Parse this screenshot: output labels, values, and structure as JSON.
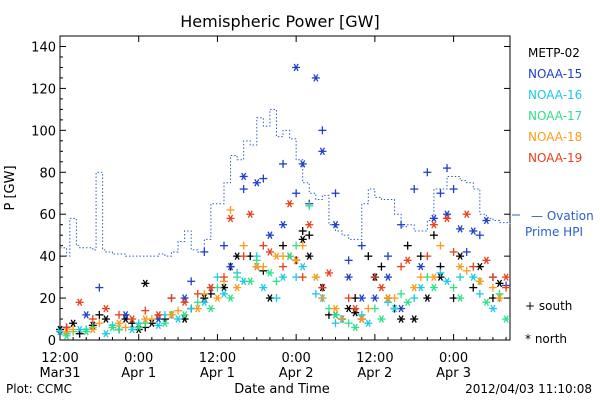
{
  "chart_data": {
    "type": "scatter",
    "title": "Hemispheric Power [GW]",
    "ylabel": "P [GW]",
    "xlabel": "Date and Time",
    "ylim": [
      0,
      145
    ],
    "y_ticks": [
      0,
      20,
      40,
      60,
      80,
      100,
      120,
      140
    ],
    "xlim_hours": [
      0,
      68.6
    ],
    "x_ticks": [
      {
        "hours": 0,
        "line1": "12:00",
        "line2": "Mar31"
      },
      {
        "hours": 12,
        "line1": "0:00",
        "line2": "Apr 1"
      },
      {
        "hours": 24,
        "line1": "12:00",
        "line2": "Apr 1"
      },
      {
        "hours": 36,
        "line1": "0:00",
        "line2": "Apr 2"
      },
      {
        "hours": 48,
        "line1": "12:00",
        "line2": "Apr 2"
      },
      {
        "hours": 60,
        "line1": "0:00",
        "line2": "Apr 3"
      }
    ],
    "legend": {
      "placement": "right",
      "satellites": [
        {
          "name": "METP-02",
          "color": "#000000"
        },
        {
          "name": "NOAA-15",
          "color": "#1f3fcc"
        },
        {
          "name": "NOAA-16",
          "color": "#1ec8e6"
        },
        {
          "name": "NOAA-17",
          "color": "#2ee08a"
        },
        {
          "name": "NOAA-18",
          "color": "#ff9a1a"
        },
        {
          "name": "NOAA-19",
          "color": "#e8401a"
        }
      ],
      "ovation_label_line1": "— Ovation",
      "ovation_label_line2": "Prime HPI",
      "ovation_color": "#2c5fcc",
      "south_label": "+ south",
      "north_label": "* north"
    },
    "ovation_series": {
      "name": "Ovation Prime HPI",
      "hours": [
        0,
        1,
        1.5,
        2.5,
        3,
        4,
        5,
        5.5,
        6.5,
        7,
        8,
        9,
        10,
        11,
        12,
        13,
        14,
        15,
        16,
        17,
        18,
        19,
        20,
        21,
        22,
        23,
        24,
        25,
        26,
        27,
        28,
        29,
        30,
        31,
        32,
        33,
        34,
        35,
        36,
        37,
        38,
        39,
        40,
        41,
        42,
        43,
        44,
        45,
        46,
        47,
        48,
        49,
        50,
        51,
        52,
        53,
        54,
        55,
        56,
        57,
        58,
        59,
        60,
        61,
        62,
        63,
        64,
        65,
        66,
        67,
        68.6
      ],
      "values": [
        44,
        40,
        58,
        45,
        44,
        44,
        43,
        80,
        43,
        42,
        41,
        41,
        40,
        40,
        40,
        40,
        40,
        41,
        40,
        42,
        47,
        52,
        43,
        42,
        48,
        65,
        65,
        75,
        88,
        86,
        95,
        93,
        106,
        102,
        110,
        97,
        100,
        96,
        86,
        75,
        70,
        67,
        69,
        55,
        52,
        50,
        48,
        48,
        65,
        72,
        68,
        67,
        67,
        60,
        54,
        55,
        52,
        52,
        57,
        72,
        72,
        78,
        78,
        76,
        75,
        72,
        60,
        58,
        57,
        56,
        54
      ]
    },
    "annotations": {
      "plot_credit": "Plot: CCMC",
      "timestamp": "2012/04/03 11:10:08"
    },
    "series": [
      {
        "name": "METP-02",
        "color": "#000000",
        "south": [
          [
            1,
            6
          ],
          [
            3,
            3
          ],
          [
            6,
            12
          ],
          [
            9,
            5
          ],
          [
            11,
            8
          ],
          [
            13,
            6
          ],
          [
            16,
            10
          ],
          [
            20,
            15
          ],
          [
            23,
            22
          ],
          [
            26,
            35
          ],
          [
            29,
            40
          ],
          [
            31,
            33
          ],
          [
            34,
            45
          ],
          [
            36,
            38
          ],
          [
            37,
            52
          ],
          [
            38,
            50
          ],
          [
            41,
            12
          ],
          [
            43,
            10
          ],
          [
            45,
            20
          ],
          [
            47,
            40
          ],
          [
            49,
            35
          ],
          [
            51,
            15
          ],
          [
            53,
            45
          ],
          [
            55,
            40
          ],
          [
            57,
            50
          ],
          [
            58,
            35
          ],
          [
            60,
            20
          ],
          [
            63,
            25
          ],
          [
            66,
            20
          ]
        ],
        "north": [
          [
            0,
            5
          ],
          [
            2,
            8
          ],
          [
            5,
            7
          ],
          [
            7,
            10
          ],
          [
            10,
            10
          ],
          [
            12,
            5
          ],
          [
            14,
            8
          ],
          [
            17,
            12
          ],
          [
            19,
            10
          ],
          [
            22,
            20
          ],
          [
            25,
            25
          ],
          [
            27,
            40
          ],
          [
            30,
            35
          ],
          [
            32,
            20
          ],
          [
            35,
            40
          ],
          [
            37,
            48
          ],
          [
            38,
            40
          ],
          [
            40,
            25
          ],
          [
            42,
            12
          ],
          [
            44,
            15
          ],
          [
            46,
            10
          ],
          [
            48,
            30
          ],
          [
            50,
            20
          ],
          [
            52,
            10
          ],
          [
            54,
            10
          ],
          [
            56,
            20
          ],
          [
            58,
            30
          ],
          [
            61,
            40
          ],
          [
            64,
            35
          ],
          [
            67,
            27
          ],
          [
            13,
            27
          ],
          [
            45,
            13
          ]
        ]
      },
      {
        "name": "NOAA-15",
        "color": "#1f3fcc",
        "south": [
          [
            6,
            25
          ],
          [
            17,
            20
          ],
          [
            20,
            28
          ],
          [
            22,
            42
          ],
          [
            25,
            45
          ],
          [
            28,
            72
          ],
          [
            31,
            77
          ],
          [
            34,
            84
          ],
          [
            36,
            70
          ],
          [
            38,
            65
          ],
          [
            40,
            100
          ],
          [
            42,
            70
          ],
          [
            44,
            38
          ],
          [
            46,
            45
          ],
          [
            48,
            30
          ],
          [
            50,
            40
          ],
          [
            52,
            55
          ],
          [
            54,
            72
          ],
          [
            56,
            80
          ],
          [
            58,
            70
          ],
          [
            59,
            82
          ],
          [
            60,
            72
          ],
          [
            62,
            42
          ],
          [
            64,
            50
          ],
          [
            66,
            30
          ],
          [
            68,
            26
          ]
        ],
        "north": [
          [
            4,
            12
          ],
          [
            10,
            12
          ],
          [
            15,
            10
          ],
          [
            19,
            20
          ],
          [
            23,
            25
          ],
          [
            26,
            35
          ],
          [
            28,
            78
          ],
          [
            30,
            75
          ],
          [
            32,
            50
          ],
          [
            34,
            55
          ],
          [
            36,
            130
          ],
          [
            37,
            84
          ],
          [
            39,
            125
          ],
          [
            40,
            90
          ],
          [
            42,
            55
          ],
          [
            44,
            30
          ],
          [
            46,
            20
          ],
          [
            48,
            20
          ],
          [
            50,
            30
          ],
          [
            52,
            15
          ],
          [
            55,
            35
          ],
          [
            57,
            58
          ],
          [
            59,
            60
          ],
          [
            61,
            53
          ],
          [
            63,
            52
          ],
          [
            65,
            57
          ]
        ]
      },
      {
        "name": "NOAA-16",
        "color": "#1ec8e6",
        "south": [
          [
            1,
            3
          ],
          [
            4,
            5
          ],
          [
            8,
            7
          ],
          [
            12,
            8
          ],
          [
            16,
            12
          ],
          [
            20,
            15
          ],
          [
            24,
            30
          ],
          [
            27,
            32
          ],
          [
            30,
            40
          ],
          [
            33,
            20
          ],
          [
            36,
            30
          ],
          [
            39,
            22
          ],
          [
            42,
            8
          ],
          [
            46,
            12
          ],
          [
            50,
            18
          ],
          [
            54,
            20
          ],
          [
            58,
            32
          ],
          [
            61,
            30
          ],
          [
            64,
            22
          ],
          [
            67,
            20
          ]
        ],
        "north": [
          [
            0,
            4
          ],
          [
            3,
            5
          ],
          [
            7,
            3
          ],
          [
            11,
            5
          ],
          [
            15,
            7
          ],
          [
            18,
            10
          ],
          [
            22,
            18
          ],
          [
            25,
            22
          ],
          [
            28,
            28
          ],
          [
            31,
            25
          ],
          [
            34,
            30
          ],
          [
            37,
            35
          ],
          [
            40,
            20
          ],
          [
            43,
            10
          ],
          [
            47,
            8
          ],
          [
            51,
            15
          ],
          [
            55,
            25
          ],
          [
            59,
            28
          ],
          [
            63,
            30
          ],
          [
            66,
            15
          ]
        ]
      },
      {
        "name": "NOAA-17",
        "color": "#2ee08a",
        "south": [
          [
            2,
            4
          ],
          [
            5,
            6
          ],
          [
            9,
            5
          ],
          [
            13,
            8
          ],
          [
            17,
            12
          ],
          [
            21,
            18
          ],
          [
            24,
            25
          ],
          [
            27,
            30
          ],
          [
            30,
            38
          ],
          [
            33,
            28
          ],
          [
            36,
            45
          ],
          [
            38,
            64
          ],
          [
            41,
            15
          ],
          [
            44,
            8
          ],
          [
            48,
            15
          ],
          [
            52,
            22
          ],
          [
            56,
            30
          ],
          [
            60,
            25
          ],
          [
            64,
            28
          ],
          [
            67,
            22
          ]
        ],
        "north": [
          [
            1,
            2
          ],
          [
            4,
            4
          ],
          [
            8,
            6
          ],
          [
            12,
            6
          ],
          [
            16,
            8
          ],
          [
            19,
            12
          ],
          [
            23,
            15
          ],
          [
            26,
            20
          ],
          [
            29,
            28
          ],
          [
            32,
            32
          ],
          [
            35,
            40
          ],
          [
            39,
            30
          ],
          [
            42,
            12
          ],
          [
            45,
            6
          ],
          [
            49,
            10
          ],
          [
            53,
            18
          ],
          [
            57,
            25
          ],
          [
            61,
            20
          ],
          [
            65,
            18
          ],
          [
            68,
            10
          ]
        ]
      },
      {
        "name": "NOAA-18",
        "color": "#ff9a1a",
        "south": [
          [
            2,
            5
          ],
          [
            6,
            8
          ],
          [
            10,
            6
          ],
          [
            14,
            10
          ],
          [
            18,
            14
          ],
          [
            22,
            22
          ],
          [
            25,
            28
          ],
          [
            26,
            62
          ],
          [
            28,
            45
          ],
          [
            31,
            35
          ],
          [
            34,
            40
          ],
          [
            37,
            45
          ],
          [
            40,
            20
          ],
          [
            43,
            10
          ],
          [
            47,
            15
          ],
          [
            51,
            20
          ],
          [
            55,
            30
          ],
          [
            58,
            45
          ],
          [
            62,
            33
          ],
          [
            66,
            25
          ]
        ],
        "north": [
          [
            1,
            4
          ],
          [
            5,
            5
          ],
          [
            9,
            8
          ],
          [
            13,
            10
          ],
          [
            17,
            12
          ],
          [
            21,
            15
          ],
          [
            24,
            20
          ],
          [
            27,
            25
          ],
          [
            30,
            35
          ],
          [
            33,
            40
          ],
          [
            36,
            38
          ],
          [
            39,
            30
          ],
          [
            42,
            15
          ],
          [
            46,
            10
          ],
          [
            50,
            20
          ],
          [
            54,
            25
          ],
          [
            57,
            30
          ],
          [
            61,
            35
          ],
          [
            64,
            28
          ],
          [
            67,
            20
          ]
        ]
      },
      {
        "name": "NOAA-19",
        "color": "#e8401a",
        "south": [
          [
            1,
            6
          ],
          [
            5,
            10
          ],
          [
            9,
            12
          ],
          [
            13,
            14
          ],
          [
            17,
            20
          ],
          [
            21,
            22
          ],
          [
            25,
            30
          ],
          [
            28,
            40
          ],
          [
            31,
            45
          ],
          [
            34,
            35
          ],
          [
            37,
            30
          ],
          [
            40,
            25
          ],
          [
            44,
            20
          ],
          [
            48,
            30
          ],
          [
            52,
            35
          ],
          [
            56,
            40
          ],
          [
            60,
            42
          ],
          [
            63,
            35
          ],
          [
            66,
            30
          ],
          [
            68,
            25
          ]
        ],
        "north": [
          [
            3,
            18
          ],
          [
            7,
            15
          ],
          [
            11,
            10
          ],
          [
            15,
            12
          ],
          [
            19,
            18
          ],
          [
            23,
            25
          ],
          [
            26,
            58
          ],
          [
            29,
            60
          ],
          [
            32,
            42
          ],
          [
            35,
            65
          ],
          [
            38,
            55
          ],
          [
            41,
            32
          ],
          [
            45,
            15
          ],
          [
            49,
            25
          ],
          [
            53,
            38
          ],
          [
            57,
            55
          ],
          [
            59,
            58
          ],
          [
            62,
            60
          ],
          [
            65,
            38
          ],
          [
            68,
            30
          ]
        ]
      }
    ]
  }
}
